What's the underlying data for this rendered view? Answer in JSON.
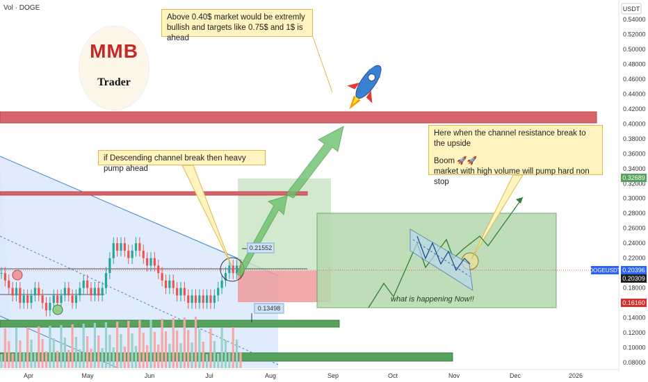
{
  "header": {
    "symbol_label": "Vol · DOGE",
    "currency_label": "USDT"
  },
  "logo": {
    "letters": "MMB",
    "trader": "Trader"
  },
  "notes": {
    "top": "Above 0.40$ market would be extremly bullish and targets like 0.75$ and 1$ is ahead",
    "channel": "if Descending channel break then heavy pump ahead",
    "right_line1": "Here when the channel resistance break to the upside",
    "right_line2": "Boom 🚀🚀",
    "right_line3": "market with high volume will pump hard non stop",
    "now": "what is happening Now!!"
  },
  "colors": {
    "resistance_red": "#d9646b",
    "support_green": "#56a15c",
    "channel_fill": "#dbe9fb",
    "target_fill": "#c5e1bf",
    "stop_fill": "#ef9a9a",
    "up_candle": "#26a69a",
    "down_candle": "#ef5350",
    "arrow_green": "#6cbf6c",
    "note_fill": "#fff3bf"
  },
  "chart_data": {
    "type": "candlestick",
    "symbol": "DOGEUSDT",
    "y_axis": {
      "ticks": [
        "0.54000",
        "0.52000",
        "0.50000",
        "0.48000",
        "0.46000",
        "0.44000",
        "0.42000",
        "0.40000",
        "0.38000",
        "0.36000",
        "0.34000",
        "0.32000",
        "0.30000",
        "0.28000",
        "0.26000",
        "0.24000",
        "0.22000",
        "0.20000",
        "0.18000",
        "0.16000",
        "0.14000",
        "0.12000",
        "0.10000",
        "0.08000"
      ],
      "ylim": [
        0.075,
        0.55
      ]
    },
    "x_axis": {
      "ticks": [
        "Apr",
        "May",
        "Jun",
        "Jul",
        "Aug",
        "Sep",
        "Oct",
        "Nov",
        "Dec",
        "2026"
      ]
    },
    "price_labels": {
      "symbol_tag": "DOGEUSDT",
      "last_price": "0.20396",
      "current": "0.20309",
      "upper_target": "0.32689",
      "lower_level": "0.16160"
    },
    "measure_labels": {
      "upper": "0.21552",
      "lower": "0.13498"
    },
    "levels": {
      "resistance_top": [
        0.405,
        0.419
      ],
      "resistance_mid": [
        0.304,
        0.309
      ],
      "support_mid": [
        0.135,
        0.143
      ],
      "support_low": [
        0.088,
        0.098
      ]
    },
    "zones": {
      "target": [
        0.155,
        0.28
      ],
      "stop": [
        0.162,
        0.205
      ],
      "profit": [
        0.205,
        0.33
      ]
    },
    "candles_approx": [
      0.2,
      0.19,
      0.18,
      0.17,
      0.18,
      0.16,
      0.17,
      0.16,
      0.17,
      0.18,
      0.17,
      0.16,
      0.15,
      0.16,
      0.17,
      0.16,
      0.17,
      0.18,
      0.17,
      0.16,
      0.17,
      0.18,
      0.19,
      0.18,
      0.17,
      0.18,
      0.17,
      0.18,
      0.2,
      0.22,
      0.24,
      0.23,
      0.24,
      0.23,
      0.22,
      0.23,
      0.24,
      0.23,
      0.22,
      0.21,
      0.22,
      0.21,
      0.2,
      0.19,
      0.18,
      0.19,
      0.18,
      0.17,
      0.18,
      0.17,
      0.16,
      0.17,
      0.16,
      0.17,
      0.16,
      0.17,
      0.16,
      0.17,
      0.18,
      0.19,
      0.2,
      0.21,
      0.2,
      0.21,
      0.2
    ]
  }
}
